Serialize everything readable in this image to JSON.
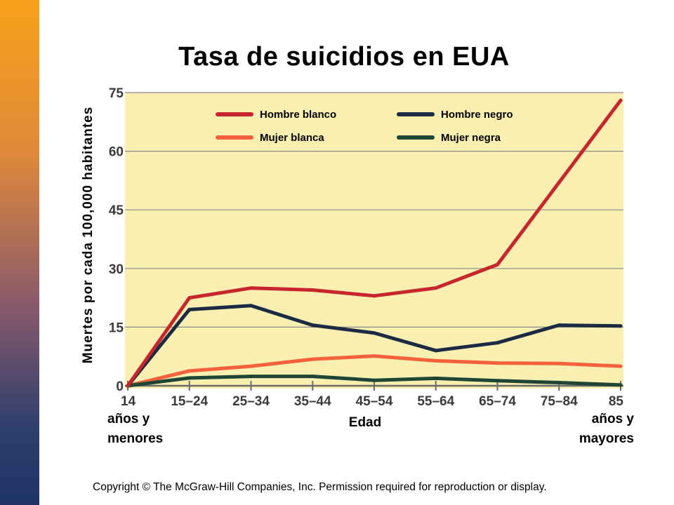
{
  "slide": {
    "title": "Tasa de suicidios en EUA",
    "copyright": "Copyright © The McGraw-Hill Companies, Inc. Permission required for reproduction or display."
  },
  "chart_data": {
    "type": "line",
    "title": "Tasa de suicidios en EUA",
    "ylabel": "Muertes por cada 100,000 habitantes",
    "xlabel": "Edad",
    "x_note_left": [
      "años y",
      "menores"
    ],
    "x_note_right": [
      "años y",
      "mayores"
    ],
    "categories": [
      "14",
      "15–24",
      "25–34",
      "35–44",
      "45–54",
      "55–64",
      "65–74",
      "75–84",
      "85"
    ],
    "yticks": [
      0,
      15,
      30,
      45,
      60,
      75
    ],
    "ylim": [
      0,
      75
    ],
    "grid": true,
    "background": "#f8efb0",
    "legend_position": "top",
    "series": [
      {
        "name": "Hombre blanco",
        "color": "#c8262d",
        "values": [
          0,
          22.5,
          25,
          24.5,
          23,
          25,
          31,
          52,
          73
        ]
      },
      {
        "name": "Hombre negro",
        "color": "#1c2a44",
        "values": [
          0,
          19.5,
          20.5,
          15.5,
          13.5,
          9,
          11,
          15.5,
          15.3
        ]
      },
      {
        "name": "Mujer blanca",
        "color": "#f5613d",
        "values": [
          0,
          3.8,
          5,
          6.8,
          7.6,
          6.4,
          5.8,
          5.7,
          5
        ]
      },
      {
        "name": "Mujer negra",
        "color": "#1f4535",
        "values": [
          0,
          2,
          2.4,
          2.4,
          1.4,
          1.9,
          1.3,
          0.8,
          0.2
        ]
      }
    ]
  }
}
